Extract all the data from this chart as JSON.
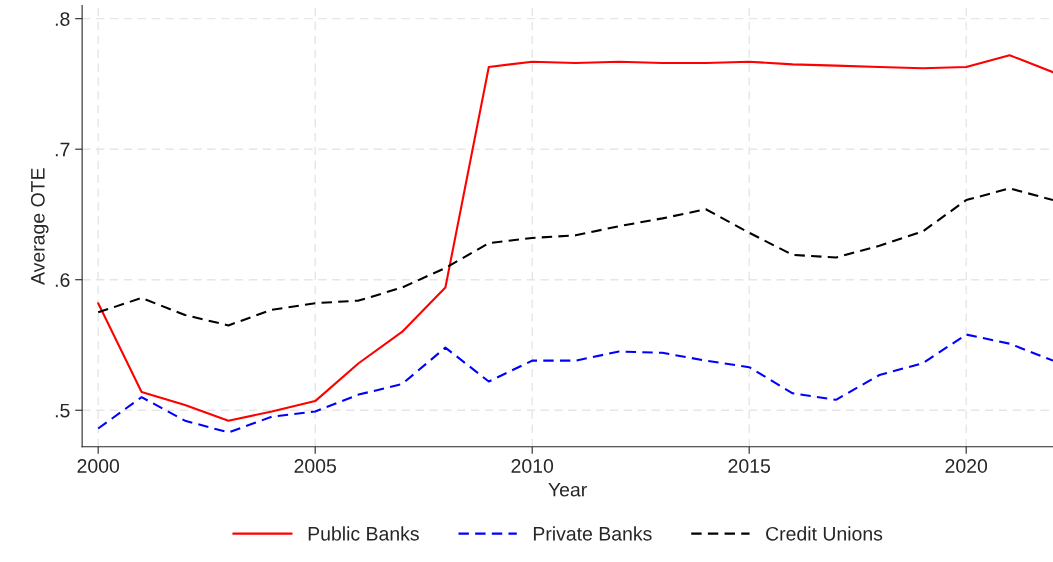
{
  "chart_data": {
    "type": "line",
    "xlabel": "Year",
    "ylabel": "Average OTE",
    "x": [
      2000,
      2001,
      2002,
      2003,
      2004,
      2005,
      2006,
      2007,
      2008,
      2009,
      2010,
      2011,
      2012,
      2013,
      2014,
      2015,
      2016,
      2017,
      2018,
      2019,
      2020,
      2021,
      2022
    ],
    "series": [
      {
        "name": "Public Banks",
        "color": "#ff0000",
        "line_style": "solid",
        "values": [
          0.582,
          0.514,
          0.504,
          0.492,
          0.499,
          0.507,
          0.536,
          0.56,
          0.594,
          0.763,
          0.767,
          0.766,
          0.767,
          0.766,
          0.766,
          0.767,
          0.765,
          0.764,
          0.763,
          0.762,
          0.763,
          0.772,
          0.759
        ]
      },
      {
        "name": "Private Banks",
        "color": "#0000ff",
        "line_style": "dashed",
        "values": [
          0.486,
          0.51,
          0.492,
          0.483,
          0.495,
          0.499,
          0.512,
          0.52,
          0.548,
          0.522,
          0.538,
          0.538,
          0.545,
          0.544,
          0.538,
          0.533,
          0.513,
          0.508,
          0.527,
          0.536,
          0.558,
          0.551,
          0.538
        ]
      },
      {
        "name": "Credit Unions",
        "color": "#000000",
        "line_style": "dashed",
        "values": [
          0.575,
          0.586,
          0.573,
          0.565,
          0.577,
          0.582,
          0.584,
          0.594,
          0.609,
          0.628,
          0.632,
          0.634,
          0.641,
          0.647,
          0.654,
          0.636,
          0.619,
          0.617,
          0.626,
          0.637,
          0.661,
          0.67,
          0.661
        ]
      }
    ],
    "xlim": [
      1999.63,
      2022
    ],
    "xticks": [
      2000,
      2005,
      2010,
      2015,
      2020
    ],
    "ylim": [
      0.472,
      0.81
    ],
    "yticks": [
      {
        "value": 0.5,
        "label": ".5"
      },
      {
        "value": 0.6,
        "label": ".6"
      },
      {
        "value": 0.7,
        "label": ".7"
      },
      {
        "value": 0.8,
        "label": ".8"
      }
    ],
    "grid": true,
    "legend": "bottom"
  }
}
